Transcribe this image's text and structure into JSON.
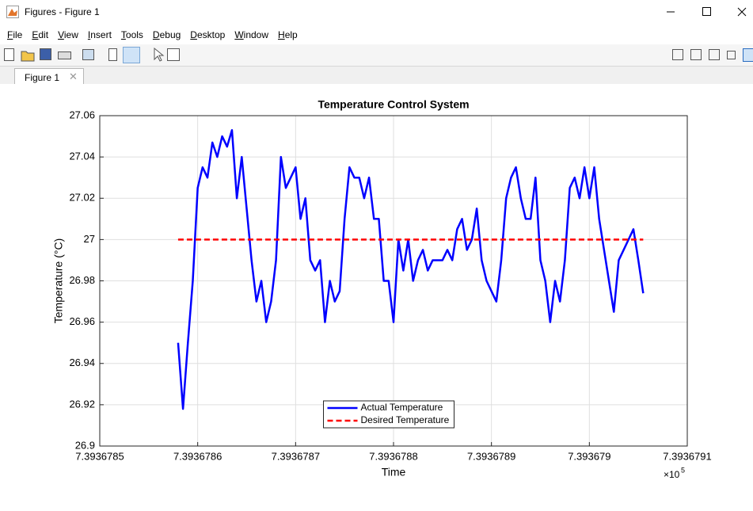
{
  "window": {
    "title": "Figures - Figure 1",
    "menu": [
      "File",
      "Edit",
      "View",
      "Insert",
      "Tools",
      "Debug",
      "Desktop",
      "Window",
      "Help"
    ],
    "tab": "Figure 1"
  },
  "chart_data": {
    "type": "line",
    "title": "Temperature Control System",
    "x_label": "Time",
    "y_label": "Temperature (°C)",
    "x_scale_label": "×10",
    "x_scale_exponent": "5",
    "xlim": [
      7.3936785,
      7.3936791
    ],
    "xticks": [
      7.3936785,
      7.3936786,
      7.3936787,
      7.3936788,
      7.3936789,
      7.393679,
      7.3936791
    ],
    "ylim": [
      26.9,
      27.06
    ],
    "yticks": [
      26.9,
      26.92,
      26.94,
      26.96,
      26.98,
      27,
      27.02,
      27.04,
      27.06
    ],
    "grid": true,
    "legend_position": "south",
    "series": [
      {
        "name": "Actual Temperature",
        "color": "#0000ff",
        "dash": "solid",
        "x": [
          7.39367858,
          7.393678585,
          7.39367859,
          7.393678595,
          7.3936786,
          7.393678605,
          7.39367861,
          7.393678615,
          7.39367862,
          7.393678625,
          7.39367863,
          7.393678635,
          7.39367864,
          7.393678645,
          7.39367865,
          7.393678655,
          7.39367866,
          7.393678665,
          7.39367867,
          7.393678675,
          7.39367868,
          7.393678685,
          7.39367869,
          7.393678695,
          7.3936787,
          7.393678705,
          7.39367871,
          7.393678715,
          7.39367872,
          7.393678725,
          7.39367873,
          7.393678735,
          7.39367874,
          7.393678745,
          7.39367875,
          7.393678755,
          7.39367876,
          7.393678765,
          7.39367877,
          7.393678775,
          7.39367878,
          7.393678785,
          7.39367879,
          7.393678795,
          7.3936788,
          7.393678805,
          7.39367881,
          7.393678815,
          7.39367882,
          7.393678825,
          7.39367883,
          7.393678835,
          7.39367884,
          7.393678845,
          7.39367885,
          7.393678855,
          7.39367886,
          7.393678865,
          7.39367887,
          7.393678875,
          7.39367888,
          7.393678885,
          7.39367889,
          7.393678895,
          7.3936789,
          7.393678905,
          7.39367891,
          7.393678915,
          7.39367892,
          7.393678925,
          7.39367893,
          7.393678935,
          7.39367894,
          7.393678945,
          7.39367895,
          7.393678955,
          7.39367896,
          7.393678965,
          7.39367897,
          7.393678975,
          7.39367898,
          7.393678985,
          7.39367899,
          7.393678995,
          7.393679,
          7.393679005,
          7.39367901,
          7.393679015,
          7.39367902,
          7.393679025,
          7.39367903,
          7.393679035,
          7.39367904,
          7.393679045,
          7.39367905,
          7.393679055
        ],
        "values": [
          26.95,
          26.918,
          26.95,
          26.98,
          27.025,
          27.035,
          27.03,
          27.047,
          27.04,
          27.05,
          27.045,
          27.053,
          27.02,
          27.04,
          27.015,
          26.99,
          26.97,
          26.98,
          26.96,
          26.97,
          26.99,
          27.04,
          27.025,
          27.03,
          27.035,
          27.01,
          27.02,
          26.99,
          26.985,
          26.99,
          26.96,
          26.98,
          26.97,
          26.975,
          27.01,
          27.035,
          27.03,
          27.03,
          27.02,
          27.03,
          27.01,
          27.01,
          26.98,
          26.98,
          26.96,
          27.0,
          26.985,
          27.0,
          26.98,
          26.99,
          26.995,
          26.985,
          26.99,
          26.99,
          26.99,
          26.995,
          26.99,
          27.005,
          27.01,
          26.995,
          27.0,
          27.015,
          26.99,
          26.98,
          26.975,
          26.97,
          26.99,
          27.02,
          27.03,
          27.035,
          27.02,
          27.01,
          27.01,
          27.03,
          26.99,
          26.98,
          26.96,
          26.98,
          26.97,
          26.99,
          27.025,
          27.03,
          27.02,
          27.035,
          27.02,
          27.035,
          27.01,
          26.995,
          26.98,
          26.965,
          26.99,
          26.995,
          27.0,
          27.005,
          26.99,
          26.974
        ]
      },
      {
        "name": "Desired Temperature",
        "color": "#ff0000",
        "dash": "dashed",
        "x": [
          7.39367858,
          7.393679055
        ],
        "values": [
          27,
          27
        ]
      }
    ]
  }
}
